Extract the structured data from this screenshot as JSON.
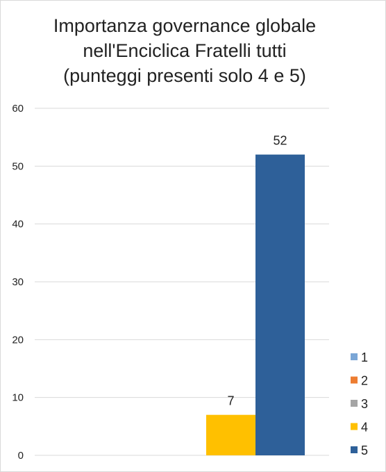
{
  "chart_data": {
    "type": "bar",
    "title_lines": [
      "Importanza governance globale",
      "nell'Enciclica Fratelli tutti",
      "(punteggi presenti solo 4 e 5)"
    ],
    "ylim": [
      0,
      60
    ],
    "yticks": [
      0,
      10,
      20,
      30,
      40,
      50,
      60
    ],
    "grid": true,
    "legend_position": "bottom-right",
    "data_labels": true,
    "series": [
      {
        "name": "1",
        "value": 0,
        "color": "#7aa6d6"
      },
      {
        "name": "2",
        "value": 0,
        "color": "#ed7d31"
      },
      {
        "name": "3",
        "value": 0,
        "color": "#a5a5a5"
      },
      {
        "name": "4",
        "value": 7,
        "color": "#ffc000"
      },
      {
        "name": "5",
        "value": 52,
        "color": "#2e6099"
      }
    ]
  }
}
